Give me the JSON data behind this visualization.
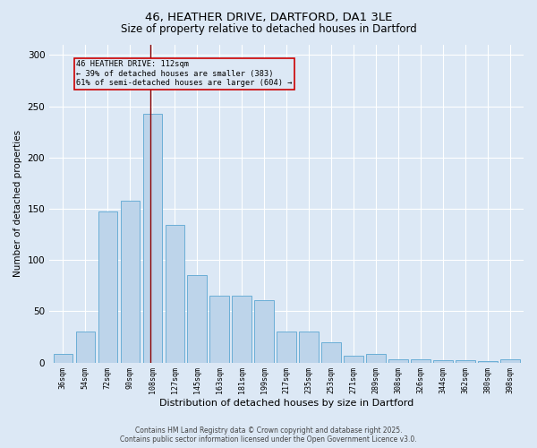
{
  "title_line1": "46, HEATHER DRIVE, DARTFORD, DA1 3LE",
  "title_line2": "Size of property relative to detached houses in Dartford",
  "xlabel": "Distribution of detached houses by size in Dartford",
  "ylabel": "Number of detached properties",
  "categories": [
    "36sqm",
    "54sqm",
    "72sqm",
    "90sqm",
    "108sqm",
    "127sqm",
    "145sqm",
    "163sqm",
    "181sqm",
    "199sqm",
    "217sqm",
    "235sqm",
    "253sqm",
    "271sqm",
    "289sqm",
    "308sqm",
    "326sqm",
    "344sqm",
    "362sqm",
    "380sqm",
    "398sqm"
  ],
  "values": [
    8,
    30,
    147,
    158,
    243,
    134,
    85,
    65,
    65,
    61,
    30,
    30,
    20,
    7,
    8,
    3,
    3,
    2,
    2,
    1,
    3
  ],
  "bar_color": "#bdd4ea",
  "bar_edge_color": "#6aaed6",
  "background_color": "#dce8f5",
  "annotation_line": "46 HEATHER DRIVE: 112sqm",
  "annotation_smaller": "← 39% of detached houses are smaller (383)",
  "annotation_larger": "61% of semi-detached houses are larger (604) →",
  "property_bar_idx": 4,
  "ylim": [
    0,
    310
  ],
  "yticks": [
    0,
    50,
    100,
    150,
    200,
    250,
    300
  ],
  "footer_line1": "Contains HM Land Registry data © Crown copyright and database right 2025.",
  "footer_line2": "Contains public sector information licensed under the Open Government Licence v3.0."
}
